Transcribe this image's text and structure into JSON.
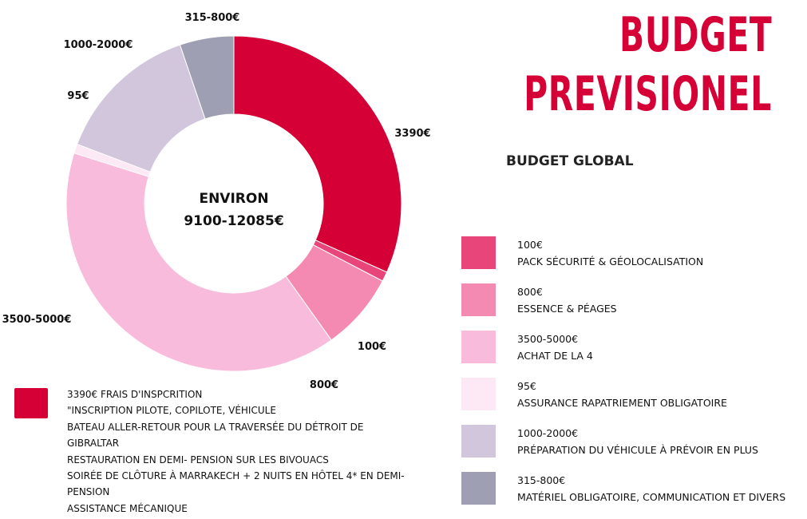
{
  "title": {
    "line1": "BUDGET",
    "line2": "PREVISIONEL"
  },
  "subtitle": "BUDGET GLOBAL",
  "center": {
    "line1": "ENVIRON",
    "line2": "9100-12085€"
  },
  "chart_data": {
    "type": "pie",
    "title": "",
    "slices": [
      {
        "label": "3390€",
        "value": 3390,
        "color": "#d40036"
      },
      {
        "label": "100€",
        "value": 100,
        "color": "#e8457a"
      },
      {
        "label": "800€",
        "value": 800,
        "color": "#f489b2"
      },
      {
        "label": "3500-5000€",
        "value": 4250,
        "color": "#f9bbdc"
      },
      {
        "label": "95€",
        "value": 95,
        "color": "#fde8f6"
      },
      {
        "label": "1000-2000€",
        "value": 1500,
        "color": "#d2c6dc"
      },
      {
        "label": "315-800€",
        "value": 557,
        "color": "#9e9fb2"
      }
    ]
  },
  "legend": [
    {
      "amount": "100€",
      "desc": "PACK SÉCURITÉ & GÉOLOCALISATION",
      "color": "#e8457a"
    },
    {
      "amount": "800€",
      "desc": "ESSENCE & PÉAGES",
      "color": "#f489b2"
    },
    {
      "amount": "3500-5000€",
      "desc": "ACHAT DE LA 4",
      "color": "#f9bbdc"
    },
    {
      "amount": "95€",
      "desc": "ASSURANCE RAPATRIEMENT OBLIGATOIRE",
      "color": "#fde8f6"
    },
    {
      "amount": "1000-2000€",
      "desc": "PRÉPARATION DU VÉHICULE À PRÉVOIR EN PLUS",
      "color": "#d2c6dc"
    },
    {
      "amount": "315-800€",
      "desc": "MATÉRIEL OBLIGATOIRE, COMMUNICATION ET DIVERS",
      "color": "#9e9fb2"
    }
  ],
  "note": {
    "color": "#d40036",
    "lines": [
      "3390€ FRAIS D'INSPCRITION",
      "\"INSCRIPTION PILOTE, COPILOTE, VÉHICULE",
      "BATEAU ALLER-RETOUR POUR LA TRAVERSÉE DU DÉTROIT DE",
      "GIBRALTAR",
      "RESTAURATION EN DEMI- PENSION SUR LES BIVOUACS",
      "SOIRÉE DE CLÔTURE À MARRAKECH + 2 NUITS EN HÔTEL 4* EN DEMI-",
      "PENSION",
      "ASSISTANCE MÉCANIQUE"
    ]
  }
}
